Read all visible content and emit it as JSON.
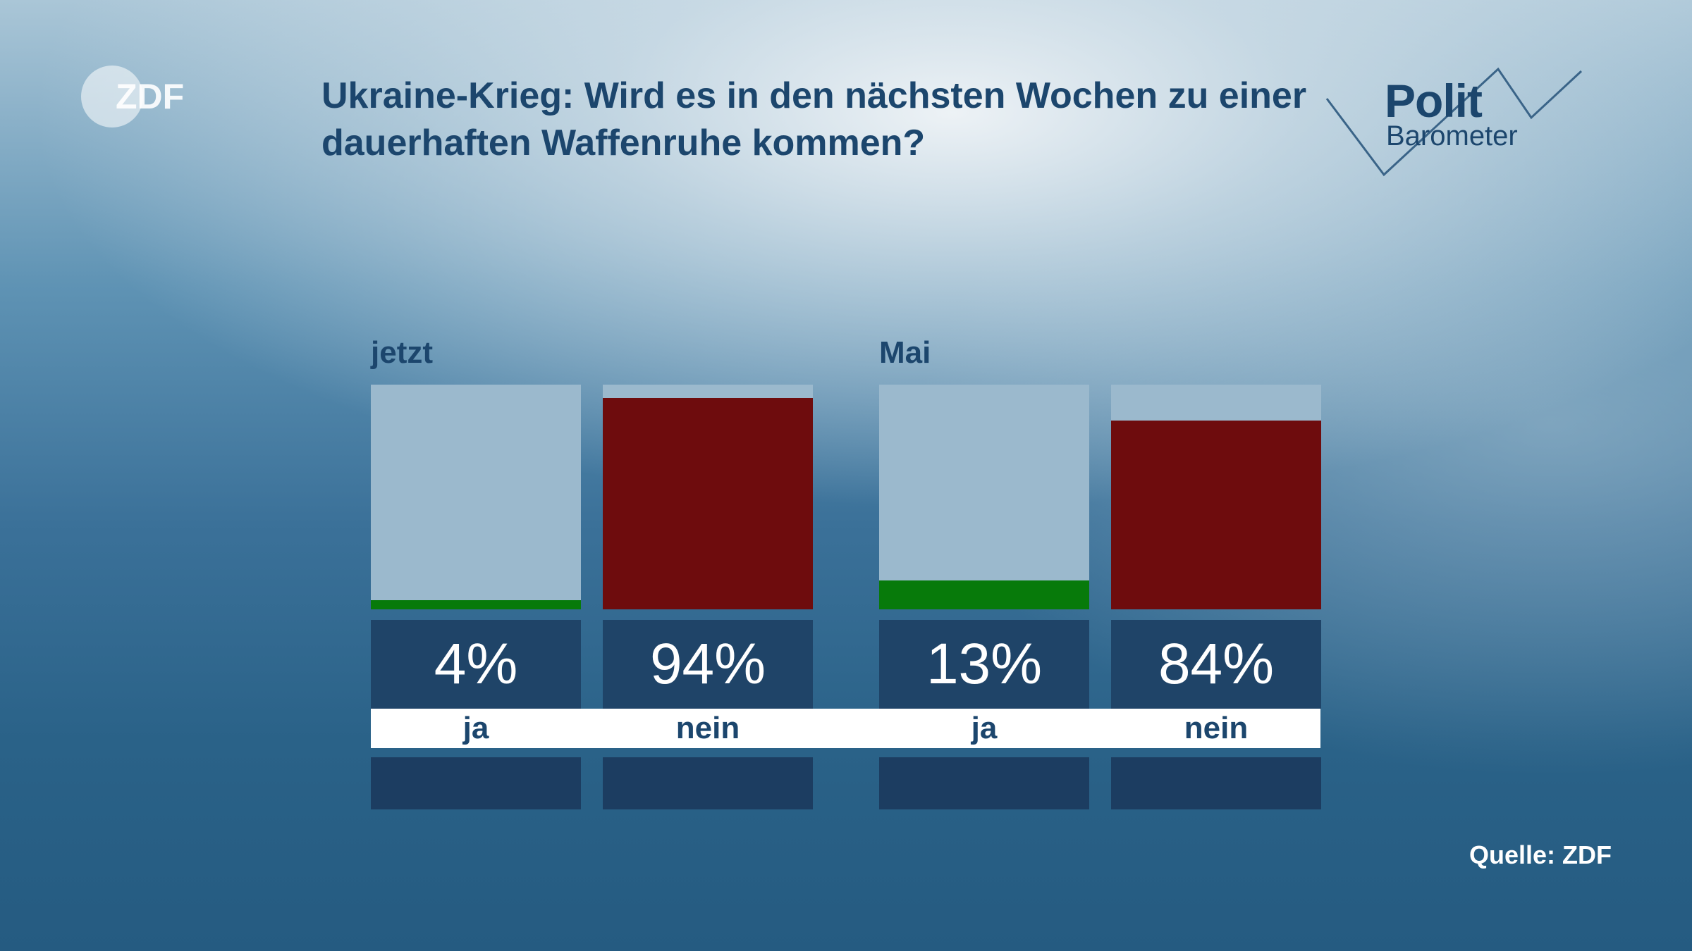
{
  "logo": {
    "name": "zdf-logo",
    "text": "ZDF"
  },
  "title": "Ukraine-Krieg: Wird es in den nächsten Wochen zu einer dauerhaften Waffenruhe kommen?",
  "brand": {
    "polit": "Polit",
    "barometer": "Barometer"
  },
  "source": "Quelle: ZDF",
  "colors": {
    "ja": "#077a0a",
    "nein": "#6e0c0d",
    "track": "#9bb9cd",
    "title": "#1c466d",
    "box": "#1f4468"
  },
  "chart_data": {
    "type": "bar",
    "title": "Ukraine-Krieg: Wird es in den nächsten Wochen zu einer dauerhaften Waffenruhe kommen?",
    "ylim": [
      0,
      100
    ],
    "groups": [
      {
        "label": "jetzt",
        "bars": [
          {
            "category": "ja",
            "value": 4,
            "value_label": "4%"
          },
          {
            "category": "nein",
            "value": 94,
            "value_label": "94%"
          }
        ]
      },
      {
        "label": "Mai",
        "bars": [
          {
            "category": "ja",
            "value": 13,
            "value_label": "13%"
          },
          {
            "category": "nein",
            "value": 84,
            "value_label": "84%"
          }
        ]
      }
    ],
    "grid": false,
    "legend": "none"
  }
}
